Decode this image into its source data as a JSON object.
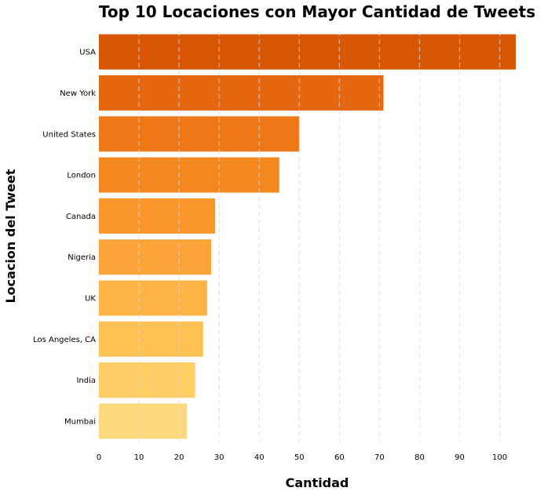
{
  "chart_data": {
    "type": "bar",
    "orientation": "horizontal",
    "title": "Top 10 Locaciones con Mayor Cantidad de Tweets",
    "xlabel": "Cantidad",
    "ylabel": "Locacion del Tweet",
    "categories": [
      "USA",
      "New York",
      "United States",
      "London",
      "Canada",
      "Nigeria",
      "UK",
      "Los Angeles, CA",
      "India",
      "Mumbai"
    ],
    "values": [
      104,
      71,
      50,
      45,
      29,
      28,
      27,
      26,
      24,
      22
    ],
    "colors": [
      "#d95704",
      "#e5670f",
      "#ee7716",
      "#f5871f",
      "#fa962b",
      "#fda438",
      "#feb346",
      "#fec153",
      "#fecd63",
      "#fed87c"
    ],
    "xlim": [
      0,
      104
    ],
    "xticks": [
      0,
      10,
      20,
      30,
      40,
      50,
      60,
      70,
      80,
      90,
      100
    ],
    "grid": "x-dashed",
    "legend": "none"
  }
}
